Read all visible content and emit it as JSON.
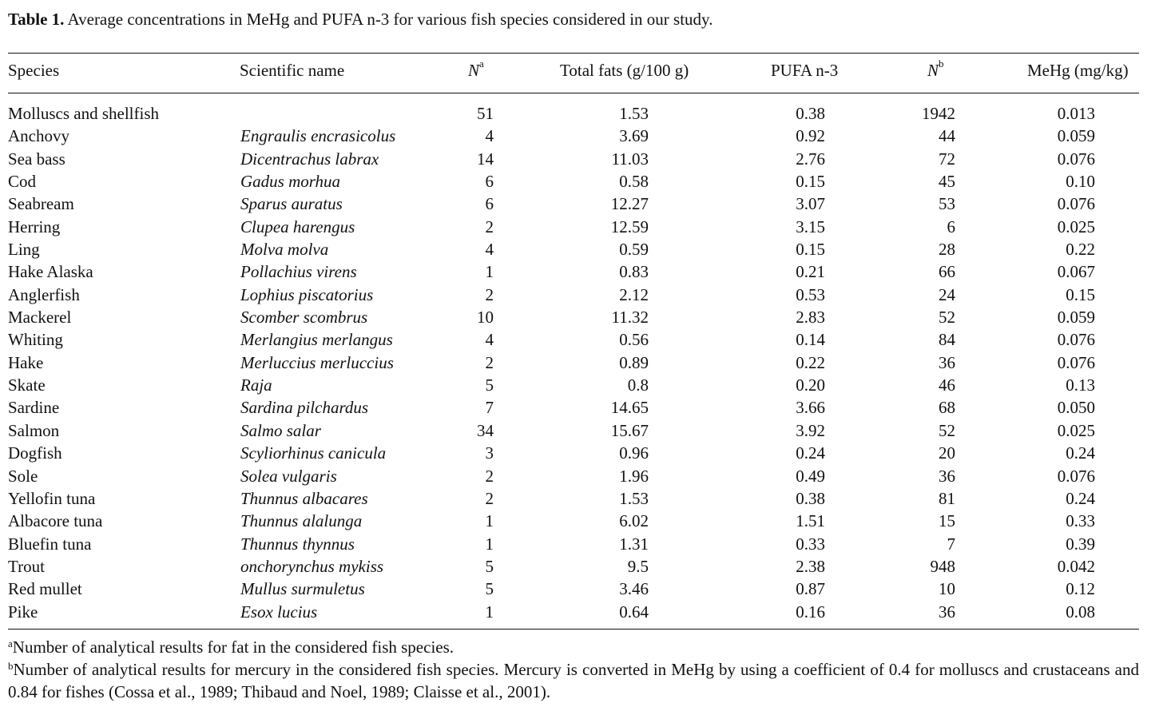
{
  "caption": {
    "label": "Table 1.",
    "text": "Average concentrations in MeHg and PUFA n-3 for various fish species considered in our study."
  },
  "headers": {
    "species": "Species",
    "scientific_name": "Scientific name",
    "n_a": "N",
    "n_a_sup": "a",
    "total_fats": "Total fats (g/100 g)",
    "pufa": "PUFA n-3",
    "n_b": "N",
    "n_b_sup": "b",
    "mehg": "MeHg (mg/kg)"
  },
  "rows": [
    {
      "species": "Molluscs and shellfish",
      "sci": "",
      "na": "51",
      "fat": "1.53",
      "pufa": "0.38",
      "nb": "1942",
      "mehg": "0.013"
    },
    {
      "species": "Anchovy",
      "sci": "Engraulis encrasicolus",
      "na": "4",
      "fat": "3.69",
      "pufa": "0.92",
      "nb": "44",
      "mehg": "0.059"
    },
    {
      "species": "Sea bass",
      "sci": "Dicentrachus labrax",
      "na": "14",
      "fat": "11.03",
      "pufa": "2.76",
      "nb": "72",
      "mehg": "0.076"
    },
    {
      "species": "Cod",
      "sci": "Gadus morhua",
      "na": "6",
      "fat": "0.58",
      "pufa": "0.15",
      "nb": "45",
      "mehg": "0.10"
    },
    {
      "species": "Seabream",
      "sci": "Sparus auratus",
      "na": "6",
      "fat": "12.27",
      "pufa": "3.07",
      "nb": "53",
      "mehg": "0.076"
    },
    {
      "species": "Herring",
      "sci": "Clupea harengus",
      "na": "2",
      "fat": "12.59",
      "pufa": "3.15",
      "nb": "6",
      "mehg": "0.025"
    },
    {
      "species": "Ling",
      "sci": "Molva molva",
      "na": "4",
      "fat": "0.59",
      "pufa": "0.15",
      "nb": "28",
      "mehg": "0.22"
    },
    {
      "species": "Hake Alaska",
      "sci": "Pollachius virens",
      "na": "1",
      "fat": "0.83",
      "pufa": "0.21",
      "nb": "66",
      "mehg": "0.067"
    },
    {
      "species": "Anglerfish",
      "sci": "Lophius piscatorius",
      "na": "2",
      "fat": "2.12",
      "pufa": "0.53",
      "nb": "24",
      "mehg": "0.15"
    },
    {
      "species": "Mackerel",
      "sci": "Scomber scombrus",
      "na": "10",
      "fat": "11.32",
      "pufa": "2.83",
      "nb": "52",
      "mehg": "0.059"
    },
    {
      "species": "Whiting",
      "sci": "Merlangius merlangus",
      "na": "4",
      "fat": "0.56",
      "pufa": "0.14",
      "nb": "84",
      "mehg": "0.076"
    },
    {
      "species": "Hake",
      "sci": "Merluccius merluccius",
      "na": "2",
      "fat": "0.89",
      "pufa": "0.22",
      "nb": "36",
      "mehg": "0.076"
    },
    {
      "species": "Skate",
      "sci": "Raja",
      "na": "5",
      "fat": "0.8",
      "pufa": "0.20",
      "nb": "46",
      "mehg": "0.13"
    },
    {
      "species": "Sardine",
      "sci": "Sardina pilchardus",
      "na": "7",
      "fat": "14.65",
      "pufa": "3.66",
      "nb": "68",
      "mehg": "0.050"
    },
    {
      "species": "Salmon",
      "sci": "Salmo salar",
      "na": "34",
      "fat": "15.67",
      "pufa": "3.92",
      "nb": "52",
      "mehg": "0.025"
    },
    {
      "species": "Dogfish",
      "sci": "Scyliorhinus canicula",
      "na": "3",
      "fat": "0.96",
      "pufa": "0.24",
      "nb": "20",
      "mehg": "0.24"
    },
    {
      "species": "Sole",
      "sci": "Solea vulgaris",
      "na": "2",
      "fat": "1.96",
      "pufa": "0.49",
      "nb": "36",
      "mehg": "0.076"
    },
    {
      "species": "Yellofin tuna",
      "sci": "Thunnus albacares",
      "na": "2",
      "fat": "1.53",
      "pufa": "0.38",
      "nb": "81",
      "mehg": "0.24"
    },
    {
      "species": "Albacore tuna",
      "sci": "Thunnus alalunga",
      "na": "1",
      "fat": "6.02",
      "pufa": "1.51",
      "nb": "15",
      "mehg": "0.33"
    },
    {
      "species": "Bluefin tuna",
      "sci": "Thunnus thynnus",
      "na": "1",
      "fat": "1.31",
      "pufa": "0.33",
      "nb": "7",
      "mehg": "0.39"
    },
    {
      "species": "Trout",
      "sci": "onchorynchus mykiss",
      "na": "5",
      "fat": "9.5",
      "pufa": "2.38",
      "nb": "948",
      "mehg": "0.042"
    },
    {
      "species": "Red mullet",
      "sci": "Mullus surmuletus",
      "na": "5",
      "fat": "3.46",
      "pufa": "0.87",
      "nb": "10",
      "mehg": "0.12"
    },
    {
      "species": "Pike",
      "sci": "Esox lucius",
      "na": "1",
      "fat": "0.64",
      "pufa": "0.16",
      "nb": "36",
      "mehg": "0.08"
    }
  ],
  "footnotes": [
    {
      "mark": "a",
      "text": "Number of analytical results for fat in the considered fish species."
    },
    {
      "mark": "b",
      "text": "Number of analytical results for mercury in the considered fish species. Mercury is converted in MeHg by using a coefficient of 0.4 for molluscs and crustaceans and 0.84 for fishes (Cossa et al., 1989; Thibaud and Noel, 1989; Claisse et al., 2001)."
    }
  ]
}
